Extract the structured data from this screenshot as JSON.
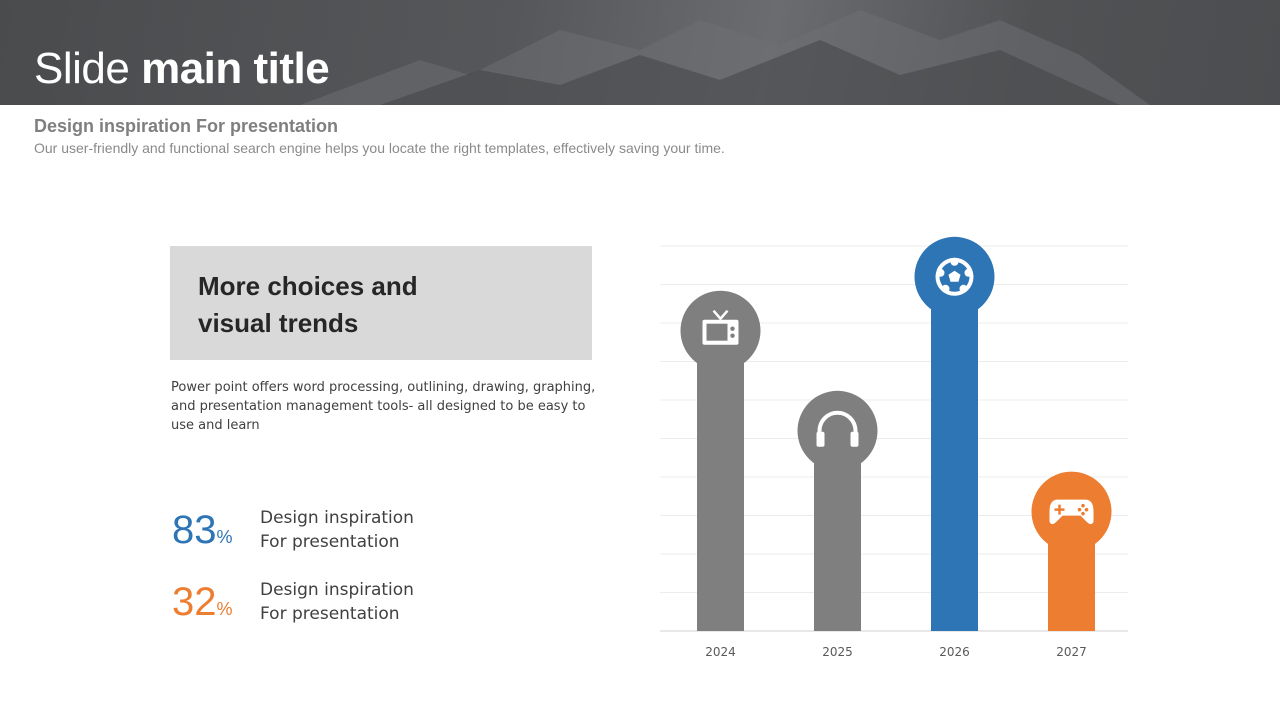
{
  "header": {
    "title_light": "Slide ",
    "title_bold": "main title"
  },
  "subtitle": {
    "heading": "Design inspiration For presentation",
    "text": "Our user-friendly and functional search engine helps you locate the right templates, effectively saving your time."
  },
  "callout": {
    "line1": "More choices and",
    "line2": "visual trends"
  },
  "paragraph": "Power point offers word processing, outlining, drawing, graphing, and presentation management tools- all designed to be easy to use and learn",
  "stats": [
    {
      "value": "83",
      "unit": "%",
      "line1": "Design inspiration",
      "line2": "For presentation",
      "color": "#2e75b6"
    },
    {
      "value": "32",
      "unit": "%",
      "line1": "Design inspiration",
      "line2": "For presentation",
      "color": "#ed7d31"
    }
  ],
  "chart_data": {
    "type": "bar",
    "categories": [
      "2024",
      "2025",
      "2026",
      "2027"
    ],
    "values": [
      7.8,
      5.2,
      9.2,
      3.1
    ],
    "ylim": [
      0,
      10
    ],
    "grid": true,
    "colors": [
      "#7f7f7f",
      "#7f7f7f",
      "#2e75b6",
      "#ed7d31"
    ],
    "icons": [
      "tv-icon",
      "headphones-icon",
      "soccer-ball-icon",
      "gamepad-icon"
    ]
  }
}
